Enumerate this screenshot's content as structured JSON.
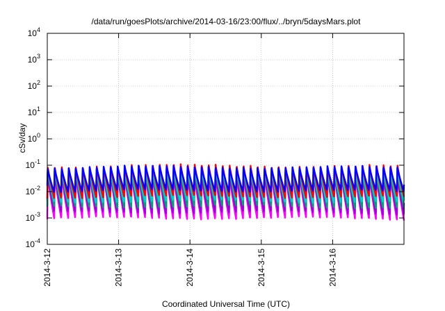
{
  "chart_data": {
    "type": "line",
    "title": "/data/run/goesPlots/archive/2014-03-16/23:00/flux/../bryn/5daysMars.plot",
    "xlabel": "Coordinated Universal Time (UTC)",
    "ylabel": "cSv/day",
    "yscale": "log",
    "ylim": [
      0.0001,
      10000
    ],
    "xlim": [
      "2014-03-12T00:00",
      "2014-03-17T00:00"
    ],
    "grid": true,
    "y_ticks": [
      {
        "value": 0.0001,
        "base": "10",
        "exp": "-4"
      },
      {
        "value": 0.001,
        "base": "10",
        "exp": "-3"
      },
      {
        "value": 0.01,
        "base": "10",
        "exp": "-2"
      },
      {
        "value": 0.1,
        "base": "10",
        "exp": "-1"
      },
      {
        "value": 1,
        "base": "10",
        "exp": "0"
      },
      {
        "value": 10,
        "base": "10",
        "exp": "1"
      },
      {
        "value": 100,
        "base": "10",
        "exp": "2"
      },
      {
        "value": 1000,
        "base": "10",
        "exp": "3"
      },
      {
        "value": 10000,
        "base": "10",
        "exp": "4"
      }
    ],
    "x_ticks": [
      "2014-3-12",
      "2014-3-13",
      "2014-3-14",
      "2014-3-15",
      "2014-3-16"
    ],
    "pattern": {
      "cycles_per_day": 10.2,
      "series": [
        {
          "color": "#ff00ff",
          "peak": 0.045,
          "trough": 0.0009
        },
        {
          "color": "#9400d3",
          "peak": 0.055,
          "trough": 0.0015
        },
        {
          "color": "#009e73",
          "peak": 0.065,
          "trough": 0.0025
        },
        {
          "color": "#00ced1",
          "peak": 0.075,
          "trough": 0.004
        },
        {
          "color": "#ff0000",
          "peak": 0.095,
          "trough": 0.006
        },
        {
          "color": "#0000ff",
          "peak": 0.085,
          "trough": 0.01
        }
      ]
    }
  }
}
